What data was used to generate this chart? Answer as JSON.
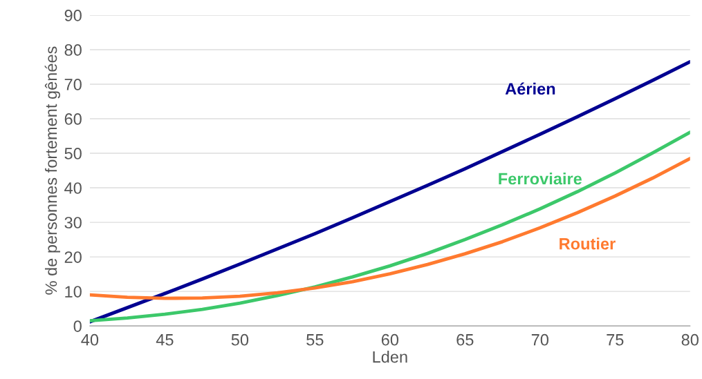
{
  "chart_data": {
    "type": "line",
    "xlabel": "Lden",
    "ylabel": "% de personnes fortement gênées",
    "x": [
      40,
      42.5,
      45,
      47.5,
      50,
      52.5,
      55,
      57.5,
      60,
      62.5,
      65,
      67.5,
      70,
      72.5,
      75,
      77.5,
      80
    ],
    "series": [
      {
        "name": "Aérien",
        "color": "#000091",
        "values": [
          1.2,
          5.3,
          9.4,
          13.6,
          17.9,
          22.3,
          26.7,
          31.3,
          36.0,
          40.7,
          45.5,
          50.5,
          55.5,
          60.6,
          65.8,
          71.1,
          76.5
        ]
      },
      {
        "name": "Ferroviaire",
        "color": "#3cc86a",
        "values": [
          1.5,
          2.3,
          3.4,
          4.8,
          6.6,
          8.8,
          11.3,
          14.2,
          17.4,
          21.0,
          25.0,
          29.3,
          33.9,
          38.9,
          44.3,
          50.1,
          56.1
        ]
      },
      {
        "name": "Routier",
        "color": "#ff7a2f",
        "values": [
          9.0,
          8.3,
          8.0,
          8.1,
          8.6,
          9.6,
          11.0,
          12.8,
          15.1,
          17.8,
          20.9,
          24.4,
          28.4,
          32.8,
          37.6,
          42.8,
          48.5
        ]
      }
    ],
    "xlim": [
      40,
      80
    ],
    "xticks": [
      40,
      45,
      50,
      55,
      60,
      65,
      70,
      75,
      80
    ],
    "ylim": [
      0,
      90
    ],
    "yticks": [
      0,
      10,
      20,
      30,
      40,
      50,
      60,
      70,
      80,
      90
    ],
    "grid": "y",
    "legend": false,
    "marker": "none",
    "line_style": "solid"
  }
}
